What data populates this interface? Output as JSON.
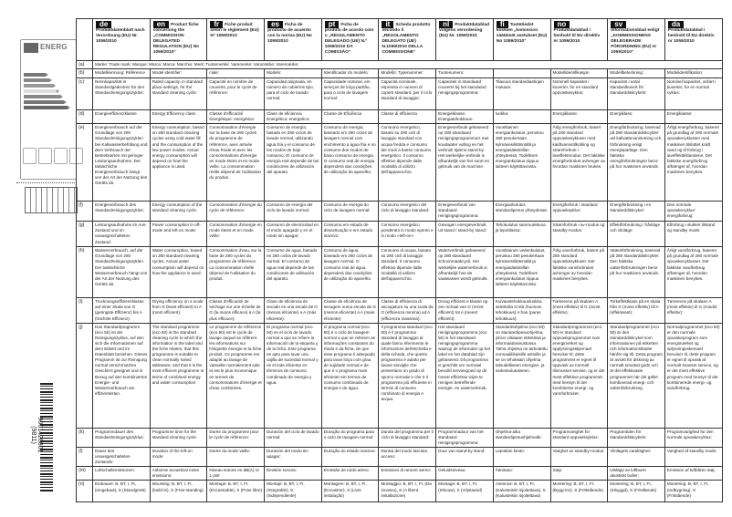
{
  "barcode": {
    "number": "9001426801",
    "code": "(9811)"
  },
  "energy_label": {
    "title": "ENERG"
  },
  "languages": [
    {
      "code": "de",
      "title": "Produktdatenblatt nach Verordnung (EU) Nr. 1059/2010"
    },
    {
      "code": "en",
      "title": "Product fiche concerning the „COMMISSION DELEGATED REGULATION (EU) No 1059/2010“"
    },
    {
      "code": "fr",
      "title": "Fiche produit selon le règlement (EU) N° 1059/2010"
    },
    {
      "code": "es",
      "title": "Ficha de producto de acuerdo con la norma (EU) No 1059/2010"
    },
    {
      "code": "pt",
      "title": "Ficha de produto de acordo com o „REGULAMENTO DELEGADO (UE) N.º 1059/2010 DA COMISSÃO“"
    },
    {
      "code": "it",
      "title": "Scheda prodotto secondo il „REGOLAMENTO DELEGATO (UE) N.1059/2010 DELLA COMMISSIONE“"
    },
    {
      "code": "nl",
      "title": "Produktdatablad volgens verordening (EU) Nr. 1059/2010"
    },
    {
      "code": "fi",
      "title": "Tuotetiedot koskien „komission säätämät asetukset (EU) No 1059/2010“"
    },
    {
      "code": "no",
      "title": "Produktdatablad i henhold til EU direktiv nr 1059/2010"
    },
    {
      "code": "sv",
      "title": "Informationsblad enligt „KOMMISSIONENS DELEGERADE FÖRORDNING (EU) nr 1059/2010“"
    },
    {
      "code": "da",
      "title": "Produktdatablad i henhold til EU direktiv nr 1059/2010"
    }
  ],
  "row_a": {
    "label": "(a)",
    "text": "Marke: Trade mark: Marque: Marca: Marca: Marchio: Merk: Tuotemerkki: Varemerke: Varumärke: Varemærke:"
  },
  "rows": [
    {
      "label": "(b)",
      "cells": [
        "Modellkennung: Référence",
        "Model identifier:",
        "ciale:",
        "Modelo:",
        "Identificador do modelo:",
        "Modello: Typenummer:",
        "Tuotenumero:",
        "",
        "Modellidentifikasjon",
        "Modellbeteckning:",
        "Modelidentifikation:"
      ]
    },
    {
      "label": "(c)",
      "cells": [
        "Nennkapazität in Standardgedecken für den Standardreinigungszyklus:",
        "Rated capacity, in standard place settings, for the standard cleaning cycle:",
        "Capacité en nombre de couverts, pour le cycle de référence:",
        "Capacidad asignada, en número de cubiertos tipo, para el ciclo de lavado normal:",
        "Capacidade nominal, em serviços de loiça-padrão, para o ciclo de lavagem normal:",
        "Capacità nominale, espressa in numero di coperti standard, per il ciclo standard di lavaggio:",
        "Capaciteit in standaard couverts bij het standaard reinigingsprogramma:",
        "Tilavuus standardiastiojen mukaan:",
        "Nominell kapasitet i kuverter, for en standard oppvaskesyklus:",
        "Kapacitet i antal standardkuvert för standarddiskcykeln:",
        "Nominel kapacitet, anført i kuverter, for en normal cyklus:"
      ]
    },
    {
      "label": "(d)",
      "cells": [
        "Energieeffizienzklasse",
        "Energy Efficiency class:",
        "Classe d'efficacité énergétique: energética:",
        "Clase de eficiencia Energética: energetica:",
        "Classe de Eficiência",
        "Classe di efficienza",
        "Energieklasse: Energiatehokkuus-",
        "luokka:",
        "Energiklasse:",
        "Energiklass:",
        "Energiklasse:"
      ]
    },
    {
      "label": "(e)",
      "cells": [
        "Energieverbrauch auf der Grundlage von 280 Standardreinigungszyklen bei Kaltwasserbefüllung und dem Verbrauch der Betriebsarten mit geringer Leistungsaufnahme. Der tatsächliche Energieverbrauch hängt von der Art der Nutzung des Geräts ab.",
        "Energy consumption, based on 280 standard cleaning cycles using cold water fill and the consumption of the low power modes. Actual energy consumption will depend on how the appliance is used.",
        "Consommation d'énergie sur la base de 280 cycles du programme de référence, avec arrivée d'eau froide et avec les consommations d'énergie en mode éteint et en mode veille. La consommation réelle dépend de l'utilisation du produit.",
        "Consumo de energía, basado en 280 ciclos de lavado normal, utilizando agua fría y el consumo de los modos de bajo consumo. El consumo de energía real depende de las condiciones de utilización del aparato.",
        "Consumo de energia, baseado em 280 ciclos de lavagem normal com enchimento a água fria e no consumo dos modos de baixo consumo de energia. O consumo real de energia dependerá das condições de utilização do aparelho.",
        "Consumo energetico, basato su 280 cicli di lavaggio standard con acqua fredda e consumo dei modi a basso consumo energetico. Il consumo effettivo dipende dalle modalità di utilizzo dell'apparecchio.",
        "Energieverbruik gebaseerd op 280 standaard reinigingsprogramma's met koudwater vulling en het verbruik tijdens stand-by. Het werkelijke verbruik is afhankelijk van het soort en gebruik van de machine.",
        "Vuosittainen energiankulutus, perustuu 280 pesukertaan kylmävesiliitännällä ja energiasäästöillan yhteydessä. Todellinen energiankulutus riippuu laitteen käyttötavoista.",
        "Årlig energiforbruk, basert på 280 standard oppvaskesykluser med kaldtvannstilkobling og strømforbruk i laveffektmodus. Det faktiske energiforbruket avhenger av hvordan maskinen brukes.",
        "Energiförbrukning, baserad på 280 standarddiskcykler vid kallvattenanslutning och förbrukning enligt energisparläge. Den faktiska energiförbrukningen beror på hur maskinen används.",
        "Årligt energiforbrug, baseret på grundlag af 280 normale opvaskecyklusser med maskinen tilsluttet koldt vand og til forbrug i laveffekttilstandene. Det faktiske energiforbrug afhænger af, hvordan maskinen benyttes."
      ]
    },
    {
      "label": "(f)",
      "cells": [
        "Energieverbrauch des Standardreinigungszyklus:",
        "Energy consumption of the standard cleaning cycle:",
        "Consommation d'énergie du cycle de référence:",
        "Consumo de energía del ciclo de lavado normal:",
        "Consumo de energia do ciclo de lavagem normal:",
        "Consumo energetico del ciclo di lavaggio standard:",
        "Energieverbruik van standaard reinigingsprogramma:",
        "Energiankulutus standardipesun yhteydessä:",
        "Energiforbruk i standard oppvasksyklus:",
        "Energiförbrukning i en standarddiskcykel:",
        "Den normale opvaskecyklus' energiforbrug:"
      ]
    },
    {
      "label": "(g)",
      "cells": [
        "Leistungsaufnahme im Aus-Zustand und im unausgeschalteten Zustand:",
        "Power consumption in off-mode and left-on mode:",
        "Consommation d'énergie en mode éteint et en mode veille:",
        "Consumo de electricidad en el modo apagado y en el modo sin apagar:",
        "Consumo em estado de desactivação e em estado inactivo:",
        "Consumo energetico ponderato in modo spento e in modo «left-on»:",
        "Gewogen energieverbruik uit-stand / stand-by stand:",
        "Tehokulutus sammutettuna ja lepotilassa:",
        "Strømforbruk i av-modus og standby-modus:",
        "Effektförbrukning i frånläge och viloläge:",
        "Elforbrug i slukket tilstand og standby mode:"
      ]
    },
    {
      "label": "(h)",
      "cells": [
        "Wasserverbrauch, auf der Grundlage von 280 Standardreinigungszyklen. Der tatsächliche Wasserverbrauch hängt von der Art der Nutzung des Geräts ab.",
        "Water consumption, based on 280 standard cleaning cycles. Actual water consumption will depend on how the appliance is used.",
        "Consommation d'eau, sur la base de 280 cycles du programme de référence. La consommation réelle dépend de l'utilisation du produit.",
        "Consumo de agua, basado en 280 ciclos de lavado normal. El consumo de agua real depende de las condiciones de utilización del aparato.",
        "Consumo de água, baseado em 280 ciclos de lavagem normal. O consumo real de água dependerá das condições de utilização do aparelho.",
        "Consumo di acqua, basato su 280 cicli di lavaggio standard. Il consumo effettivo dipende dalle modalità di utilizzo dell'apparecchio.",
        "Waterverbruik gebaseerd op 280 standaard schoonmaakcycli. Het werkelijke waterverbruik is afhankelijk hoe de vaatwasser wordt gebruikt.",
        "Vuosittainen vedenkulutus, perustuu 280 pesukertaan kylmävesiliitännällä ja energiasäästöillan yhteydessä. Todellinen energiankulutus riippuu laitteen käyttötavoista.",
        "Årlig vannforbruk, basert på 280 standard oppvaskesykluser. Det faktiske vannforbruket avhenger av hvordan maskinen benyttes.",
        "Vattenförbrukning, baserad på 280 standarddiskcykler. Den faktiska vattenförbrukningen beror på hur maskinen används.",
        "Årligt vandforbrug, baseret på grundlag af 280 normale opvaskecyklusser. Det faktiske vandforbrug afhænger af, hvordan maskinen benyttes."
      ]
    },
    {
      "label": "(i)",
      "cells": [
        "Trocknungseffizienzklasse auf einer Skala von G (geringste Effizienz) bis A (höchste Effizienz):",
        "Drying efficiency on a scale from G (least efficient) to A (most efficient):",
        "Classe d'efficacité de séchage sur une échelle de G (la moins efficace) à A (la plus efficace):",
        "Clase de eficiencia de secado en una escala de G (menos eficiente) a A (más eficiente):",
        "Classe de eficiência de secagem numa escala de G (menos eficiente) a A (mais eficiente):",
        "Classe di efficienza di asciugatura su una scala da G (efficienza minima) ad A (efficienza massima):",
        "Droog efficiënt e klasse op een schaal van G (minst efficiënt) tot A (meest efficiënt):",
        "Kuivaustehokkuusluokka asteikolla G:stä (huonoin tehokkuus) A:han (paras tehokkuus):",
        "Tørkeevne på skalaen A (mest effektiv) til G (minst effektiv):",
        "Torkeffektklass på en skala från G (minst effektiv) till A (effektivast):",
        "Tørreevne på skalaen A (mest effektiv) til G (mindst effektiv):"
      ]
    },
    {
      "label": "(j)",
      "cells": [
        "Das Standardprogramm (eco 50) ist der Reinigungszyklus, auf den sich die Informationen auf dem Etikett und im Datenblatt beziehen. Dieses Programm ist zur Reinigung normal verschmutzten Geschirrs geeignet und in Bezug auf den kombinierten Energie- und Wasserverbrauch am effizientesten.",
        "The standard programme (eco 50) is the standard cleaning cycle to which the information in the label and the fiche relates, that this programme is suitable to clean normally soiled tableware, and that it is the most efficient programme in terms of combined energy and water consumption",
        "Le programme de référence (eco 50) est le cycle de lavage auquel se réfèrent les informations sur l'étiquette énergie et la fiche produit. Ce programme est adapté au lavage de vaisselle normalement sale et est le plus économique en termes de consommations d'énergie et d'eau combinées.",
        "El programa normal (eco 50) es el ciclo de lavado normal a que se refiere la información de la etiqueta y de la ficha. Este programa es apto para lavar una vajilla de suciedad normal y es el más eficiente en términos de consumo combinado de energía y agua.",
        "O programa normal (eco 50) é o ciclo de lavagem normal a que se referem as informações constantes do rótulo e da ficha, de que esse programa é adequado para lavar loiça com grau de sujidade normal e de que é o programa mais eficiente em termos de consumo combinado de energia e de água.",
        "Il programma standard (eco 50) è il programma standard di lavaggio al quale fanno riferimento le informazioni dell'etichetta e della scheda, che questo programma è adatto per lavare stoviglie che presentano un grado di sporco normale e che è il programma più efficiente in termini di consumo combinato di energia e acqua.",
        "Het standaard reinigingsprogramma (eco 50) is het standaard-reinigingsprogramma waarop de informatie op het label en het datablad zijn gebaseerd. Dit programma is geschikt om normaal bevuild serviesgoed op de meest efficiënte wijze te reinigen betreffende energie- en waterverbruik.",
        "Standardiohjelma (eco 50) on standardipesuohjelma, johon viitataan etiketissä ja informaatiosivustossa. Tämä ohjelma on tarkoitettu normaalilikaisille astioille ja se on tehokkain ohjelma taloudelliseen energian- ja vedenkulutukseen.",
        "Standardprogrammet (eco 50) er standard oppvaskprogrammet som energimerket og opplysningsskjemaet henviser til; dette programmet er egnet til oppvask av normalt tilsmusset servise, og er det mest effektive programmet med hensyn til det kombinerte energi- og vannforbruket.",
        "Standardprogrammet (eco 50) är den standarddiskcykel som informationen på etiketten och informationsbladet hänför sig till. Detta program är avsett för diskning av normalt smutsat gods och är det effektivaste programmet när det gäller kombinerad energi- och vattenförbrukning.",
        "Normalprogrammet (eco 50) er den normale opvaskeprogram som energimærket og oplysningsskemaet henviser til, dette program er egnet til opvask af normalt snavset service, og er det mest effektive program med hensyn til det kombinerede energi- og vandforbrug."
      ]
    },
    {
      "label": "(k)",
      "cells": [
        "Programmdauer des Standardreinigungszyklus:",
        "Programme time for the standard cleaning cycle:",
        "Durée du programme pour le cycle de référence:",
        "Duración del ciclo de lavado normal:",
        "Duração do programa para o ciclo de lavagem normal:",
        "Durata del programma per il ciclo di lavaggio standard:",
        "Programmaduur van het standaard reinigingsprogramma:",
        "Ohjelma-aika standardipesuohjelmalle:",
        "Programvarighet for standard oppvasksyklus:",
        "Programtiden för standarddiskcykeln:",
        "Programvarighed for den normale opvaskecyklus:"
      ]
    },
    {
      "label": "(l)",
      "cells": [
        "Dauer des unausgeschalteten Zustands:",
        "Duration of the left-on mode:",
        "Durée du mode veille:",
        "Duración del modo sin apagar:",
        "Duração do estado inactivo:",
        "Durata del modo lasciato acceso:",
        "Duur van stand-by stand:",
        "Lepotilan kesto:",
        "Varighet av standby-modus:",
        "Vilolägets varaktighet:",
        "Varighed af standby mode:"
      ]
    },
    {
      "label": "(m)",
      "cells": [
        "Luftschallemissionen:",
        "Airborne acoustical noise emissions:",
        "Niveau sonore en dB(A) re 1 pW:",
        "Emisión sonora:",
        "Emissão de ruído aéreo:",
        "Emissioni di rumore aereo:",
        "Geluidsniveau:",
        "Äänitaso:",
        "Støy:",
        "Utsläpp av luftburet akustiskt buller:",
        "Emission af luftbåren støj:"
      ]
    },
    {
      "label": "(n)",
      "cells": [
        "Einbauart: B, BT, I, FI, (eingebaut), S (Standgerät)",
        "Mounting: B, BT, I, FI, (build-in), S (Free-standing)",
        "Montage: B, BT, I, FI, (Encastrable), S (Pose libre)",
        "Montaje: B, BT, I, FI, (Integrable), S (Independiente)",
        "Montagem: B, BT, I, FI, (Encastrar), S (Livre instalação)",
        "Montaggio: B, BT, I, FI, (Da incasso), S (A libera installazione)",
        "Montage: B, BT, I, FI, (Inbouw), S (Vrijstaand)",
        "Asennus: B, BT, I, FI, (Kalusteisiin sijoitettava), S (Kalusteisiin sijoitettava)",
        "Montering: B, BT, I, FI, (Bygg-inn), S (Frittstående)",
        "Montering: B, BT, I, FI, (Inbyggd), S (Fristående)",
        "Montering: B, BT, I, FI, (Indbygning), S (Fritstående)"
      ]
    }
  ]
}
